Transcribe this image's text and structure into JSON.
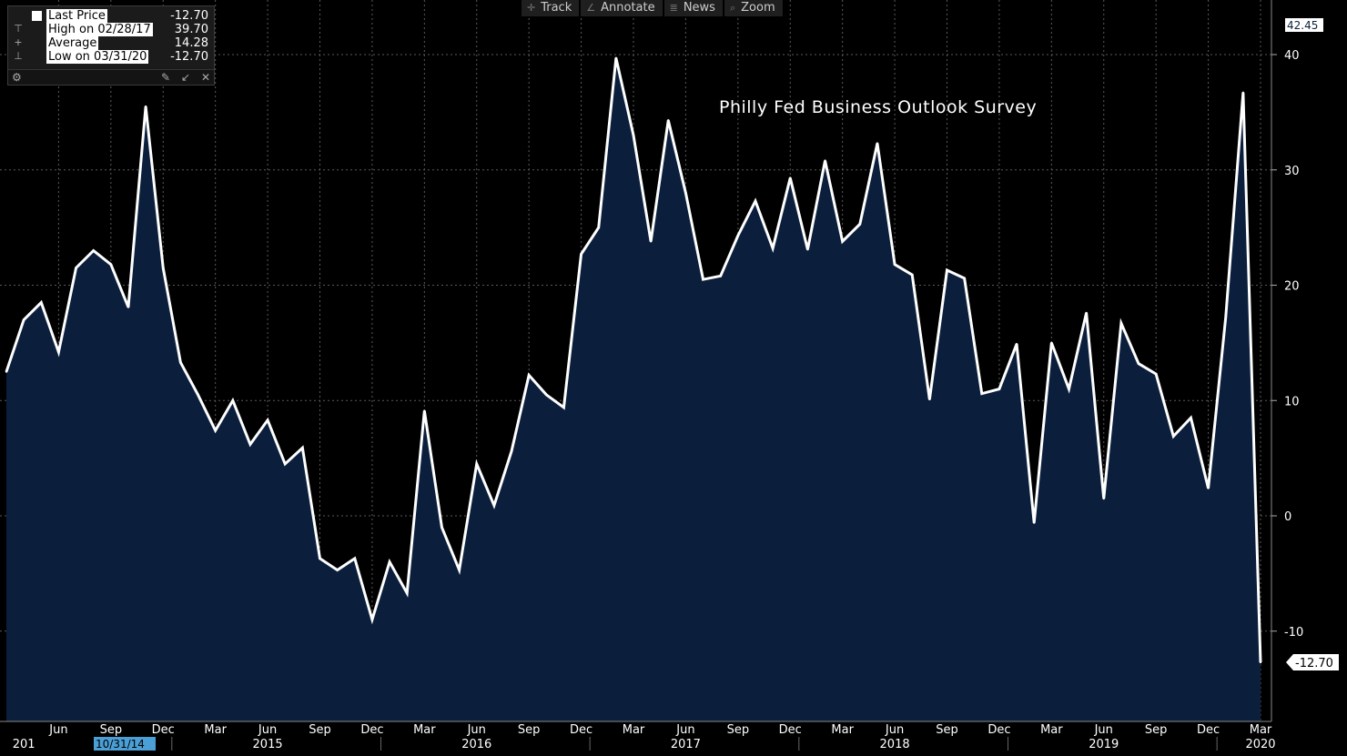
{
  "legend": {
    "rows": [
      {
        "glyph": "",
        "label": "Last Price",
        "value": "-12.70"
      },
      {
        "glyph": "⊤",
        "label": "High on 02/28/17",
        "value": "39.70"
      },
      {
        "glyph": "+",
        "label": "Average",
        "value": "14.28"
      },
      {
        "glyph": "⊥",
        "label": "Low on 03/31/20",
        "value": "-12.70"
      }
    ],
    "tools": {
      "settings_icon": "gear-icon",
      "pin_icon": "pin-icon",
      "shrink_icon": "shrink-icon",
      "close_icon": "close-icon"
    }
  },
  "toolbar": {
    "items": [
      {
        "label": "Track",
        "icon": "crosshair-icon"
      },
      {
        "label": "Annotate",
        "icon": "pencil-icon"
      },
      {
        "label": "News",
        "icon": "news-icon"
      },
      {
        "label": "Zoom",
        "icon": "zoom-icon"
      }
    ]
  },
  "colors": {
    "background": "#000000",
    "area_fill": "#0b1f3d",
    "line": "#ffffff",
    "grid": "#5a5a5a"
  },
  "chart_data": {
    "type": "area",
    "title": "Philly Fed Business Outlook Survey",
    "x": [
      "2014-03",
      "2014-04",
      "2014-05",
      "2014-06",
      "2014-07",
      "2014-08",
      "2014-09",
      "2014-10",
      "2014-11",
      "2014-12",
      "2015-01",
      "2015-02",
      "2015-03",
      "2015-04",
      "2015-05",
      "2015-06",
      "2015-07",
      "2015-08",
      "2015-09",
      "2015-10",
      "2015-11",
      "2015-12",
      "2016-01",
      "2016-02",
      "2016-03",
      "2016-04",
      "2016-05",
      "2016-06",
      "2016-07",
      "2016-08",
      "2016-09",
      "2016-10",
      "2016-11",
      "2016-12",
      "2017-01",
      "2017-02",
      "2017-03",
      "2017-04",
      "2017-05",
      "2017-06",
      "2017-07",
      "2017-08",
      "2017-09",
      "2017-10",
      "2017-11",
      "2017-12",
      "2018-01",
      "2018-02",
      "2018-03",
      "2018-04",
      "2018-05",
      "2018-06",
      "2018-07",
      "2018-08",
      "2018-09",
      "2018-10",
      "2018-11",
      "2018-12",
      "2019-01",
      "2019-02",
      "2019-03",
      "2019-04",
      "2019-05",
      "2019-06",
      "2019-07",
      "2019-08",
      "2019-09",
      "2019-10",
      "2019-11",
      "2019-12",
      "2020-01",
      "2020-02",
      "2020-03"
    ],
    "series": [
      {
        "values": [
          12.5,
          17.0,
          18.5,
          14.2,
          21.5,
          23.0,
          21.8,
          18.1,
          35.5,
          21.5,
          13.3,
          10.5,
          7.4,
          10.0,
          6.2,
          8.3,
          4.5,
          5.9,
          -3.7,
          -4.7,
          -3.7,
          -9.0,
          -4.0,
          -6.7,
          9.1,
          -1.0,
          -4.7,
          4.5,
          0.9,
          5.6,
          12.2,
          10.5,
          9.4,
          22.7,
          25.0,
          39.7,
          33.0,
          23.8,
          34.3,
          28.0,
          20.5,
          20.8,
          24.3,
          27.3,
          23.2,
          29.3,
          23.1,
          30.8,
          23.8,
          25.3,
          32.3,
          21.8,
          20.9,
          10.1,
          21.3,
          20.6,
          10.6,
          11.0,
          14.9,
          -0.6,
          15.0,
          11.0,
          17.6,
          1.5,
          16.7,
          13.2,
          12.3,
          6.9,
          8.5,
          2.4,
          17.2,
          36.7,
          -12.7
        ]
      }
    ],
    "ylim": [
      -17,
      43
    ],
    "yticks": [
      -10,
      0,
      10,
      20,
      30,
      40
    ],
    "x_tick_labels": [
      {
        "date": "2014-06",
        "label": "Jun"
      },
      {
        "date": "2014-09",
        "label": "Sep"
      },
      {
        "date": "2014-12",
        "label": "Dec"
      },
      {
        "date": "2015-03",
        "label": "Mar"
      },
      {
        "date": "2015-06",
        "label": "Jun"
      },
      {
        "date": "2015-09",
        "label": "Sep"
      },
      {
        "date": "2015-12",
        "label": "Dec"
      },
      {
        "date": "2016-03",
        "label": "Mar"
      },
      {
        "date": "2016-06",
        "label": "Jun"
      },
      {
        "date": "2016-09",
        "label": "Sep"
      },
      {
        "date": "2016-12",
        "label": "Dec"
      },
      {
        "date": "2017-03",
        "label": "Mar"
      },
      {
        "date": "2017-06",
        "label": "Jun"
      },
      {
        "date": "2017-09",
        "label": "Sep"
      },
      {
        "date": "2017-12",
        "label": "Dec"
      },
      {
        "date": "2018-03",
        "label": "Mar"
      },
      {
        "date": "2018-06",
        "label": "Jun"
      },
      {
        "date": "2018-09",
        "label": "Sep"
      },
      {
        "date": "2018-12",
        "label": "Dec"
      },
      {
        "date": "2019-03",
        "label": "Mar"
      },
      {
        "date": "2019-06",
        "label": "Jun"
      },
      {
        "date": "2019-09",
        "label": "Sep"
      },
      {
        "date": "2019-12",
        "label": "Dec"
      },
      {
        "date": "2020-03",
        "label": "Mar"
      }
    ],
    "year_labels": [
      {
        "date": "2014-04",
        "label": "201"
      },
      {
        "date": "2015-06",
        "label": "2015"
      },
      {
        "date": "2016-06",
        "label": "2016"
      },
      {
        "date": "2017-06",
        "label": "2017"
      },
      {
        "date": "2018-06",
        "label": "2018"
      },
      {
        "date": "2019-06",
        "label": "2019"
      },
      {
        "date": "2020-03",
        "label": "2020"
      }
    ],
    "range_start_badge": "10/31/14",
    "right_axis_max_badge": "42.45",
    "last_value_label": "-12.70",
    "grid": true
  }
}
